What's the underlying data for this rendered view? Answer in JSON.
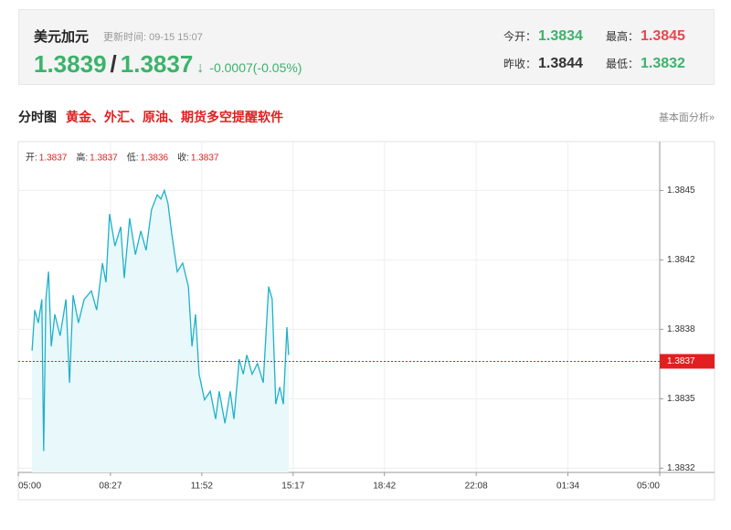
{
  "header": {
    "name": "美元加元",
    "update_label": "更新时间: 09-15 15:07",
    "bid": "1.3839",
    "separator": "/",
    "ask": "1.3837",
    "arrow": "↓",
    "change": "-0.0007(-0.05%)",
    "stats": [
      {
        "label": "今开：",
        "value": "1.3834",
        "color": "#3bb36b"
      },
      {
        "label": "最高：",
        "value": "1.3845",
        "color": "#e5484d"
      },
      {
        "label": "昨收：",
        "value": "1.3844",
        "color": "#333333"
      },
      {
        "label": "最低：",
        "value": "1.3832",
        "color": "#3bb36b"
      }
    ]
  },
  "tabs": {
    "title": "分时图",
    "promo": "黄金、外汇、原油、期货多空提醒软件",
    "link": "基本面分析»"
  },
  "chart_data": {
    "type": "line",
    "color": "#1fb1c9",
    "fill": "#e9f8fb",
    "grid": true,
    "ohlc": [
      {
        "label": "开:",
        "value": "1.3837"
      },
      {
        "label": "高:",
        "value": "1.3837"
      },
      {
        "label": "低:",
        "value": "1.3836"
      },
      {
        "label": "收:",
        "value": "1.3837"
      }
    ],
    "current_value": 1.3837,
    "xlim": [
      0,
      1440
    ],
    "xticks": [
      {
        "value": 0,
        "label": "05:00"
      },
      {
        "value": 207,
        "label": "08:27"
      },
      {
        "value": 412,
        "label": "11:52"
      },
      {
        "value": 617,
        "label": "15:17"
      },
      {
        "value": 822,
        "label": "18:42"
      },
      {
        "value": 1028,
        "label": "22:08"
      },
      {
        "value": 1234,
        "label": "01:34"
      },
      {
        "value": 1440,
        "label": "05:00"
      }
    ],
    "ylim": [
      1.38318,
      1.38472
    ],
    "yticks": [
      {
        "value": 1.3832,
        "label": "1.3832"
      },
      {
        "value": 1.383525,
        "label": "1.3835"
      },
      {
        "value": 1.38385,
        "label": "1.3838"
      },
      {
        "value": 1.384175,
        "label": "1.3842"
      },
      {
        "value": 1.3845,
        "label": "1.3845"
      }
    ],
    "x": [
      31,
      37,
      45,
      53,
      57,
      62,
      68,
      74,
      82,
      94,
      107,
      115,
      123,
      135,
      148,
      164,
      176,
      189,
      197,
      205,
      217,
      230,
      238,
      250,
      263,
      275,
      287,
      299,
      312,
      320,
      328,
      336,
      345,
      357,
      369,
      382,
      390,
      398,
      406,
      418,
      431,
      443,
      451,
      464,
      476,
      484,
      496,
      505,
      513,
      525,
      537,
      550,
      562,
      570,
      578,
      587,
      595,
      603,
      607
    ],
    "values": [
      1.38375,
      1.38394,
      1.38388,
      1.38399,
      1.38328,
      1.38399,
      1.38412,
      1.38377,
      1.38392,
      1.38382,
      1.38399,
      1.3836,
      1.38401,
      1.38388,
      1.38399,
      1.38403,
      1.38394,
      1.38416,
      1.38407,
      1.38439,
      1.38424,
      1.38433,
      1.38409,
      1.38437,
      1.3842,
      1.38431,
      1.38422,
      1.38441,
      1.38448,
      1.38446,
      1.3845,
      1.38444,
      1.38429,
      1.38412,
      1.38416,
      1.38405,
      1.38377,
      1.38392,
      1.38364,
      1.38352,
      1.38356,
      1.38343,
      1.38356,
      1.38341,
      1.38356,
      1.38343,
      1.38371,
      1.38364,
      1.38373,
      1.38364,
      1.38369,
      1.3836,
      1.38405,
      1.38399,
      1.3835,
      1.38358,
      1.3835,
      1.38386,
      1.38373
    ]
  }
}
